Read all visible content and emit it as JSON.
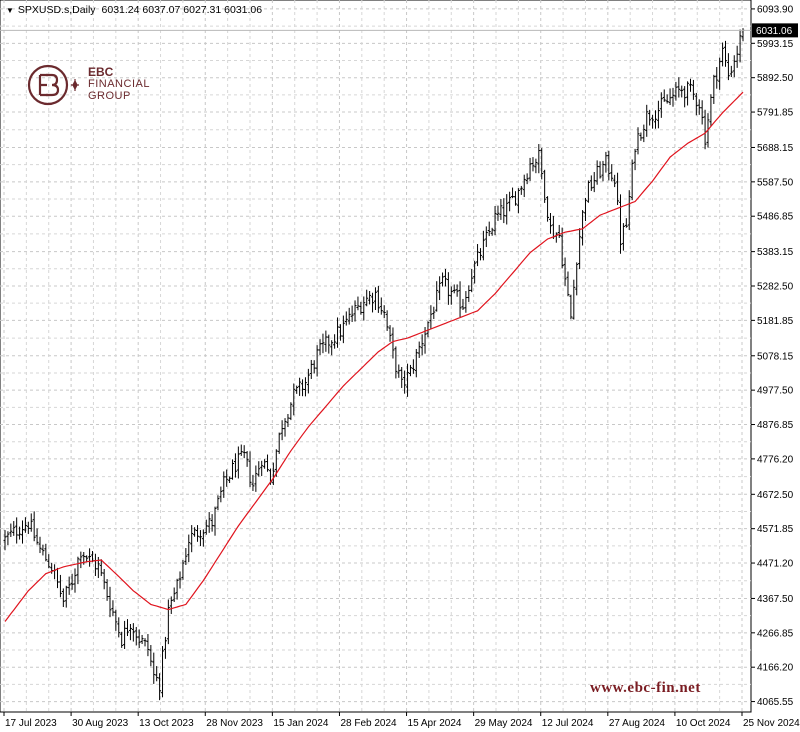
{
  "header": {
    "symbol": "SPXUSD.s,Daily",
    "ohlc": "6031.24 6037.07 6027.31 6031.06"
  },
  "logo": {
    "line1": "EBC",
    "line2": "FINANCIAL",
    "line3": "GROUP",
    "color": "#6b2a2e"
  },
  "watermark_url": "www.ebc-fin.net",
  "chart_data": {
    "type": "bar",
    "style": "ohlc",
    "title": "",
    "xlabel": "",
    "ylabel": "",
    "ylim": [
      4035.0,
      6120.0
    ],
    "grid": true,
    "grid_style": "dashed",
    "current_price": "6031.06",
    "y_ticks": [
      "6093.90",
      "5993.15",
      "5892.50",
      "5791.85",
      "5688.15",
      "5587.50",
      "5486.85",
      "5383.15",
      "5282.50",
      "5181.85",
      "5078.15",
      "4977.50",
      "4876.85",
      "4776.20",
      "4672.50",
      "4571.85",
      "4471.20",
      "4367.50",
      "4266.85",
      "4166.20",
      "4065.55"
    ],
    "x_ticks": [
      "17 Jul 2023",
      "30 Aug 2023",
      "13 Oct 2023",
      "28 Nov 2023",
      "15 Jan 2024",
      "28 Feb 2024",
      "15 Apr 2024",
      "29 May 2024",
      "12 Jul 2024",
      "27 Aug 2024",
      "10 Oct 2024",
      "25 Nov 2024"
    ],
    "price_anchors": [
      [
        0,
        4540
      ],
      [
        5,
        4575
      ],
      [
        8,
        4590
      ],
      [
        12,
        4510
      ],
      [
        16,
        4460
      ],
      [
        20,
        4360
      ],
      [
        23,
        4420
      ],
      [
        26,
        4510
      ],
      [
        29,
        4480
      ],
      [
        32,
        4460
      ],
      [
        35,
        4380
      ],
      [
        38,
        4300
      ],
      [
        40,
        4250
      ],
      [
        43,
        4300
      ],
      [
        46,
        4250
      ],
      [
        49,
        4220
      ],
      [
        51,
        4140
      ],
      [
        53,
        4120
      ],
      [
        56,
        4330
      ],
      [
        59,
        4400
      ],
      [
        63,
        4540
      ],
      [
        67,
        4570
      ],
      [
        71,
        4590
      ],
      [
        75,
        4700
      ],
      [
        79,
        4760
      ],
      [
        82,
        4780
      ],
      [
        85,
        4700
      ],
      [
        88,
        4780
      ],
      [
        91,
        4720
      ],
      [
        95,
        4880
      ],
      [
        99,
        4960
      ],
      [
        103,
        5000
      ],
      [
        107,
        5080
      ],
      [
        111,
        5120
      ],
      [
        115,
        5150
      ],
      [
        119,
        5200
      ],
      [
        123,
        5240
      ],
      [
        127,
        5260
      ],
      [
        130,
        5200
      ],
      [
        133,
        5080
      ],
      [
        136,
        4990
      ],
      [
        139,
        5030
      ],
      [
        142,
        5100
      ],
      [
        146,
        5200
      ],
      [
        150,
        5290
      ],
      [
        154,
        5250
      ],
      [
        157,
        5230
      ],
      [
        160,
        5320
      ],
      [
        164,
        5400
      ],
      [
        168,
        5480
      ],
      [
        172,
        5510
      ],
      [
        176,
        5560
      ],
      [
        180,
        5640
      ],
      [
        183,
        5660
      ],
      [
        185,
        5560
      ],
      [
        187,
        5450
      ],
      [
        190,
        5430
      ],
      [
        192,
        5300
      ],
      [
        194,
        5190
      ],
      [
        196,
        5370
      ],
      [
        199,
        5550
      ],
      [
        203,
        5610
      ],
      [
        206,
        5640
      ],
      [
        209,
        5600
      ],
      [
        211,
        5420
      ],
      [
        213,
        5460
      ],
      [
        216,
        5700
      ],
      [
        220,
        5780
      ],
      [
        224,
        5800
      ],
      [
        228,
        5830
      ],
      [
        232,
        5860
      ],
      [
        235,
        5850
      ],
      [
        238,
        5820
      ],
      [
        240,
        5720
      ],
      [
        243,
        5880
      ],
      [
        246,
        5970
      ],
      [
        248,
        5900
      ],
      [
        251,
        5970
      ],
      [
        253,
        6031.06
      ]
    ],
    "ma_anchors": [
      [
        0,
        4300
      ],
      [
        8,
        4390
      ],
      [
        14,
        4440
      ],
      [
        20,
        4460
      ],
      [
        28,
        4475
      ],
      [
        33,
        4480
      ],
      [
        38,
        4440
      ],
      [
        44,
        4390
      ],
      [
        50,
        4350
      ],
      [
        56,
        4335
      ],
      [
        62,
        4350
      ],
      [
        68,
        4420
      ],
      [
        74,
        4500
      ],
      [
        80,
        4580
      ],
      [
        86,
        4650
      ],
      [
        92,
        4720
      ],
      [
        98,
        4800
      ],
      [
        104,
        4870
      ],
      [
        110,
        4930
      ],
      [
        116,
        4990
      ],
      [
        122,
        5040
      ],
      [
        128,
        5090
      ],
      [
        133,
        5120
      ],
      [
        138,
        5130
      ],
      [
        144,
        5150
      ],
      [
        150,
        5170
      ],
      [
        156,
        5190
      ],
      [
        162,
        5210
      ],
      [
        168,
        5260
      ],
      [
        174,
        5320
      ],
      [
        180,
        5380
      ],
      [
        186,
        5420
      ],
      [
        192,
        5440
      ],
      [
        198,
        5450
      ],
      [
        204,
        5490
      ],
      [
        210,
        5510
      ],
      [
        216,
        5530
      ],
      [
        222,
        5590
      ],
      [
        228,
        5660
      ],
      [
        234,
        5700
      ],
      [
        240,
        5730
      ],
      [
        246,
        5790
      ],
      [
        253,
        5850
      ]
    ],
    "series": [
      {
        "type": "ohlc",
        "color": "#000000"
      },
      {
        "type": "moving-average",
        "color": "#e0141e"
      }
    ]
  }
}
